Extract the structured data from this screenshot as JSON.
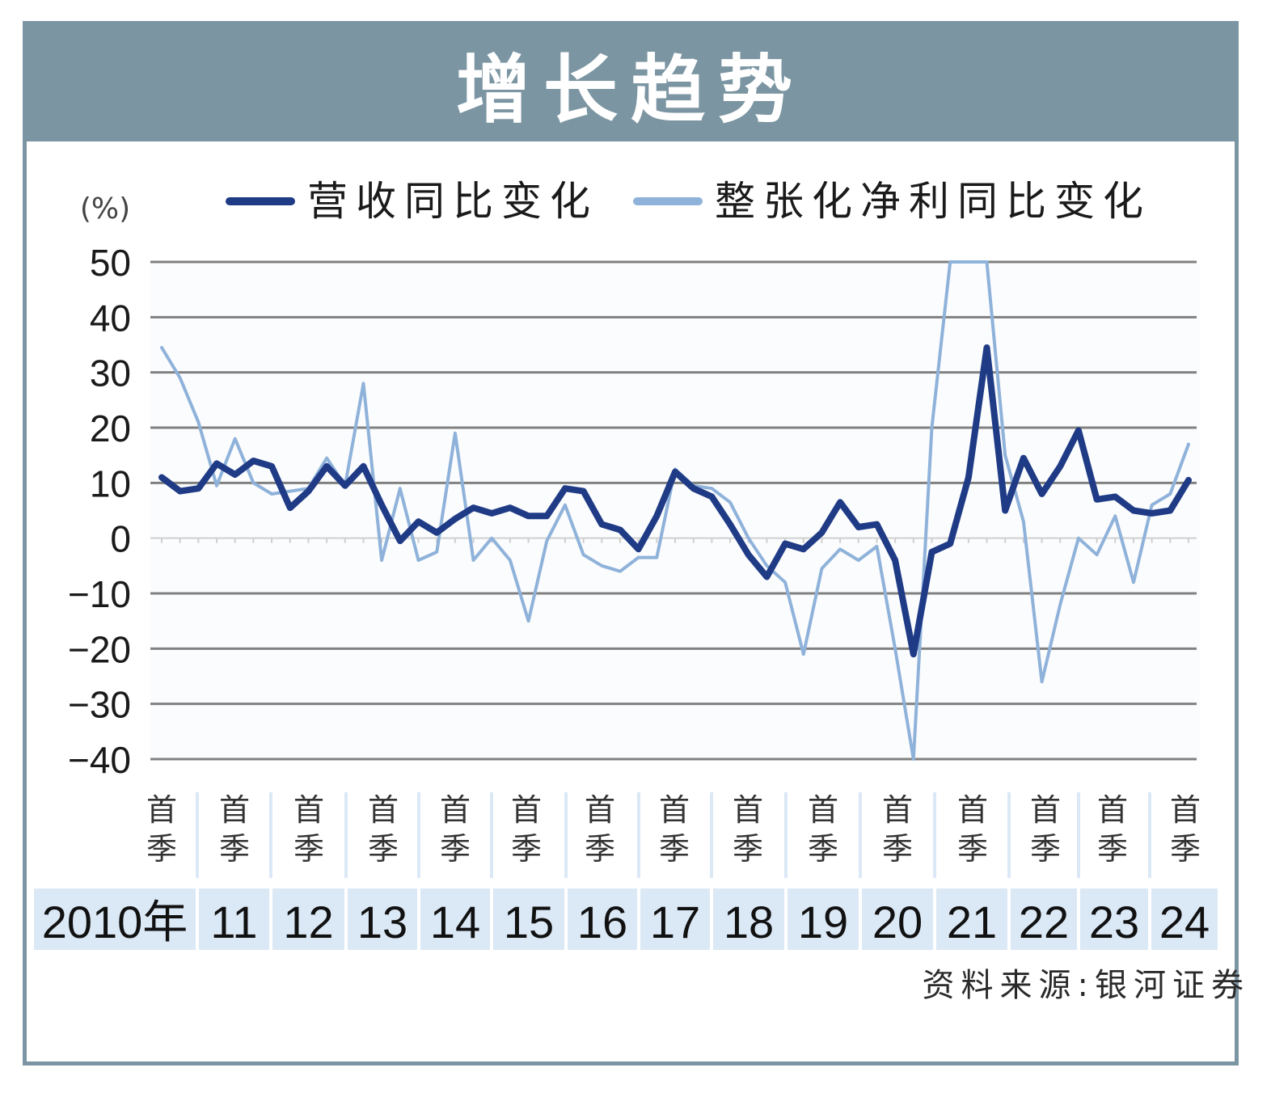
{
  "title": "增长趋势",
  "source": "资料来源:银河证券",
  "colors": {
    "frame": "#7b95a2",
    "revenue": "#1f3b86",
    "profit": "#8fb2da",
    "year_band": "#dbe8f5",
    "grid": "#808080"
  },
  "chart_data": {
    "type": "line",
    "unit_label": "(%)",
    "ylim": [
      -40,
      50
    ],
    "yticks": [
      "50",
      "40",
      "30",
      "20",
      "10",
      "0",
      "−10",
      "−20",
      "−30",
      "−40"
    ],
    "ytick_values": [
      50,
      40,
      30,
      20,
      10,
      0,
      -10,
      -20,
      -30,
      -40
    ],
    "quarter_label": "首季",
    "year_labels": [
      "2010年",
      "11",
      "12",
      "13",
      "14",
      "15",
      "16",
      "17",
      "18",
      "19",
      "20",
      "21",
      "22",
      "23",
      "24"
    ],
    "grid": true,
    "legend_placement": "top",
    "series": [
      {
        "name": "营收同比变化",
        "values": [
          11,
          8.5,
          9,
          13.5,
          11.5,
          14,
          13,
          5.5,
          8.5,
          13,
          9.5,
          13,
          6,
          -0.5,
          3,
          1,
          3.5,
          5.5,
          4.5,
          5.5,
          4,
          4,
          9,
          8.5,
          2.5,
          1.5,
          -2,
          4,
          12,
          9,
          7.5,
          2.5,
          -3,
          -7,
          -1,
          -2,
          1,
          6.5,
          2,
          2.5,
          -4,
          -21,
          -2.5,
          -1,
          11,
          34.5,
          5,
          14.5,
          8,
          13,
          19.5,
          7,
          7.5,
          5,
          4.5,
          5,
          10.5
        ]
      },
      {
        "name": "整张化净利同比变化",
        "values": [
          34.5,
          29,
          21,
          9.5,
          18,
          10,
          8,
          8.5,
          9,
          14.5,
          9.5,
          28,
          -4,
          9,
          -4,
          -2.5,
          19,
          -4,
          0,
          -4,
          -15,
          -0.5,
          6,
          -3,
          -5,
          -6,
          -3.5,
          -3.5,
          12.5,
          9.5,
          9,
          6.5,
          0,
          -5,
          -8,
          -21,
          -5.5,
          -2,
          -4,
          -1.5,
          -20,
          -40,
          20,
          50,
          50,
          50,
          15,
          3,
          -26,
          -12,
          0,
          -3,
          4,
          -8,
          6,
          8,
          17
        ]
      }
    ]
  }
}
